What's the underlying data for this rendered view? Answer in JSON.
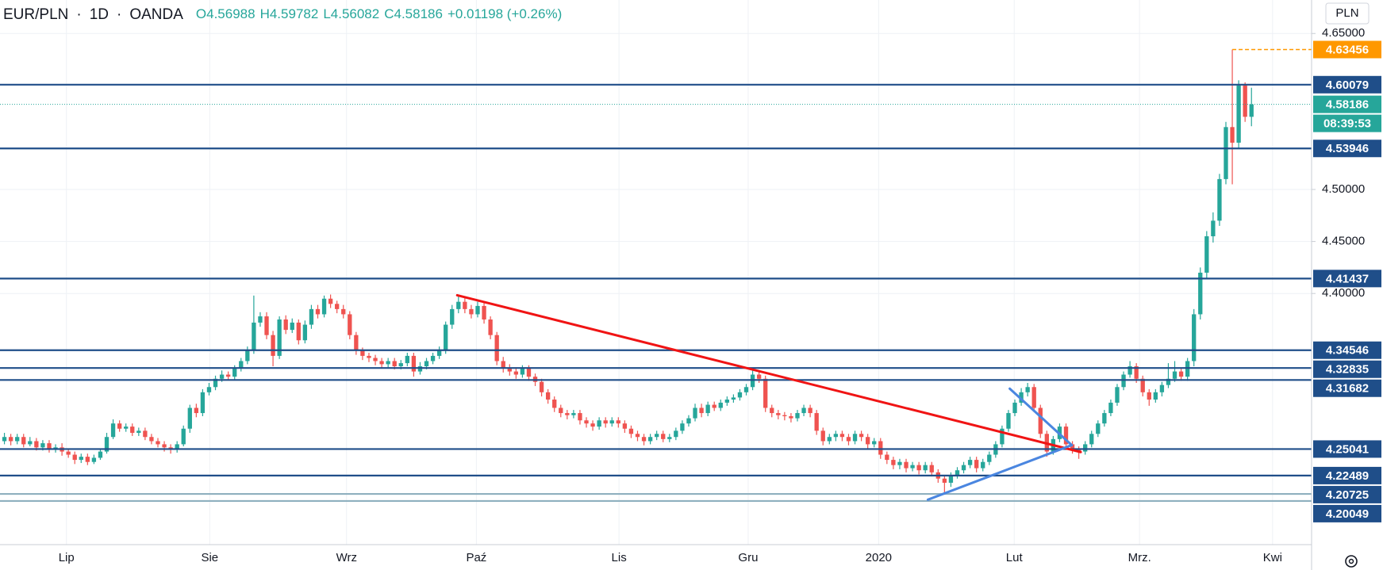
{
  "chart_data": {
    "type": "candlestick",
    "symbol": "EUR/PLN",
    "interval": "1D",
    "source": "OANDA",
    "ohlc_labels": [
      "O4.56988",
      "H4.59782",
      "L4.56082",
      "C4.58186"
    ],
    "change_label": "+0.01198 (+0.26%)",
    "currency": "PLN",
    "colors": {
      "up": "#26a69a",
      "down": "#ef5350",
      "level": "#1f4e89",
      "level_light": "#8fb0bf",
      "high_marker": "#ff9800",
      "grid": "#eef1f5"
    },
    "first_open": 4.258,
    "close": [
      4.262,
      4.258,
      4.262,
      4.255,
      4.258,
      4.252,
      4.256,
      4.25,
      4.252,
      4.248,
      4.245,
      4.24,
      4.243,
      4.238,
      4.242,
      4.248,
      4.262,
      4.275,
      4.27,
      4.272,
      4.266,
      4.268,
      4.262,
      4.258,
      4.255,
      4.252,
      4.25,
      4.255,
      4.27,
      4.29,
      4.285,
      4.305,
      4.31,
      4.318,
      4.322,
      4.32,
      4.328,
      4.335,
      4.345,
      4.372,
      4.378,
      4.36,
      4.34,
      4.375,
      4.365,
      4.372,
      4.355,
      4.37,
      4.385,
      4.38,
      4.395,
      4.39,
      4.385,
      4.38,
      4.36,
      4.345,
      4.34,
      4.338,
      4.335,
      4.332,
      4.335,
      4.33,
      4.333,
      4.34,
      4.325,
      4.33,
      4.335,
      4.34,
      4.345,
      4.37,
      4.385,
      4.392,
      4.385,
      4.38,
      4.388,
      4.375,
      4.36,
      4.335,
      4.328,
      4.325,
      4.322,
      4.328,
      4.32,
      4.315,
      4.305,
      4.298,
      4.29,
      4.285,
      4.283,
      4.285,
      4.278,
      4.275,
      4.272,
      4.278,
      4.275,
      4.278,
      4.275,
      4.27,
      4.265,
      4.262,
      4.258,
      4.262,
      4.265,
      4.26,
      4.262,
      4.268,
      4.275,
      4.28,
      4.29,
      4.285,
      4.293,
      4.29,
      4.295,
      4.298,
      4.3,
      4.305,
      4.31,
      4.322,
      4.318,
      4.29,
      4.285,
      4.283,
      4.282,
      4.28,
      4.285,
      4.29,
      4.285,
      4.268,
      4.258,
      4.262,
      4.265,
      4.262,
      4.258,
      4.265,
      4.262,
      4.255,
      4.258,
      4.245,
      4.24,
      4.235,
      4.238,
      4.232,
      4.235,
      4.23,
      4.235,
      4.228,
      4.222,
      4.218,
      4.225,
      4.23,
      4.235,
      4.24,
      4.232,
      4.238,
      4.245,
      4.255,
      4.27,
      4.285,
      4.295,
      4.305,
      4.31,
      4.29,
      4.265,
      4.248,
      4.26,
      4.272,
      4.255,
      4.25,
      4.248,
      4.255,
      4.265,
      4.275,
      4.285,
      4.295,
      4.31,
      4.322,
      4.33,
      4.318,
      4.305,
      4.298,
      4.305,
      4.312,
      4.318,
      4.325,
      4.32,
      4.335,
      4.38,
      4.42,
      4.455,
      4.47,
      4.51,
      4.56,
      4.545,
      4.6,
      4.56988,
      4.58186
    ],
    "high": [
      4.266,
      4.265,
      4.265,
      4.265,
      4.262,
      4.261,
      4.259,
      4.259,
      4.255,
      4.256,
      4.251,
      4.248,
      4.246,
      4.246,
      4.245,
      4.251,
      4.266,
      4.279,
      4.278,
      4.275,
      4.275,
      4.271,
      4.271,
      4.265,
      4.261,
      4.258,
      4.255,
      4.258,
      4.273,
      4.293,
      4.294,
      4.308,
      4.314,
      4.321,
      4.326,
      4.325,
      4.331,
      4.338,
      4.349,
      4.398,
      4.382,
      4.382,
      4.364,
      4.378,
      4.379,
      4.376,
      4.375,
      4.374,
      4.389,
      4.389,
      4.398,
      4.399,
      4.393,
      4.389,
      4.383,
      4.363,
      4.348,
      4.343,
      4.341,
      4.338,
      4.338,
      4.338,
      4.336,
      4.343,
      4.343,
      4.334,
      4.338,
      4.343,
      4.349,
      4.373,
      4.389,
      4.397,
      4.396,
      4.389,
      4.392,
      4.391,
      4.378,
      4.363,
      4.339,
      4.332,
      4.329,
      4.331,
      4.331,
      4.323,
      4.318,
      4.308,
      4.301,
      4.293,
      4.288,
      4.288,
      4.288,
      4.281,
      4.278,
      4.281,
      4.281,
      4.281,
      4.281,
      4.278,
      4.273,
      4.268,
      4.265,
      4.265,
      4.268,
      4.268,
      4.265,
      4.271,
      4.278,
      4.283,
      4.294,
      4.294,
      4.296,
      4.296,
      4.298,
      4.301,
      4.303,
      4.308,
      4.313,
      4.326,
      4.326,
      4.321,
      4.293,
      4.288,
      4.286,
      4.285,
      4.288,
      4.293,
      4.293,
      4.288,
      4.271,
      4.265,
      4.268,
      4.268,
      4.265,
      4.268,
      4.268,
      4.265,
      4.261,
      4.261,
      4.248,
      4.243,
      4.241,
      4.241,
      4.238,
      4.238,
      4.238,
      4.238,
      4.231,
      4.225,
      4.228,
      4.233,
      4.238,
      4.243,
      4.243,
      4.241,
      4.248,
      4.258,
      4.273,
      4.288,
      4.298,
      4.309,
      4.314,
      4.313,
      4.293,
      4.268,
      4.263,
      4.275,
      4.275,
      4.258,
      4.253,
      4.258,
      4.268,
      4.278,
      4.288,
      4.298,
      4.313,
      4.325,
      4.335,
      4.333,
      4.321,
      4.308,
      4.308,
      4.315,
      4.333,
      4.335,
      4.328,
      4.338,
      4.385,
      4.425,
      4.46,
      4.478,
      4.515,
      4.565,
      4.63456,
      4.605,
      4.603,
      4.59782
    ],
    "low": [
      4.255,
      4.254,
      4.255,
      4.252,
      4.253,
      4.249,
      4.249,
      4.247,
      4.247,
      4.244,
      4.242,
      4.236,
      4.237,
      4.235,
      4.236,
      4.24,
      4.246,
      4.26,
      4.267,
      4.267,
      4.263,
      4.263,
      4.259,
      4.255,
      4.252,
      4.248,
      4.246,
      4.247,
      4.253,
      4.266,
      4.281,
      4.282,
      4.302,
      4.307,
      4.315,
      4.317,
      4.317,
      4.325,
      4.332,
      4.342,
      4.368,
      4.356,
      4.33,
      4.337,
      4.361,
      4.362,
      4.351,
      4.352,
      4.366,
      4.376,
      4.377,
      4.386,
      4.381,
      4.376,
      4.356,
      4.341,
      4.336,
      4.334,
      4.331,
      4.328,
      4.329,
      4.327,
      4.327,
      4.33,
      4.32,
      4.322,
      4.327,
      4.332,
      4.337,
      4.342,
      4.366,
      4.381,
      4.381,
      4.376,
      4.377,
      4.371,
      4.356,
      4.331,
      4.324,
      4.321,
      4.318,
      4.319,
      4.316,
      4.311,
      4.301,
      4.294,
      4.286,
      4.281,
      4.279,
      4.28,
      4.274,
      4.271,
      4.268,
      4.269,
      4.271,
      4.272,
      4.271,
      4.266,
      4.261,
      4.258,
      4.254,
      4.255,
      4.259,
      4.257,
      4.257,
      4.259,
      4.265,
      4.272,
      4.277,
      4.281,
      4.282,
      4.287,
      4.287,
      4.292,
      4.295,
      4.297,
      4.302,
      4.307,
      4.314,
      4.286,
      4.281,
      4.279,
      4.278,
      4.276,
      4.277,
      4.282,
      4.281,
      4.264,
      4.254,
      4.255,
      4.258,
      4.258,
      4.254,
      4.255,
      4.258,
      4.251,
      4.252,
      4.241,
      4.236,
      4.231,
      4.231,
      4.228,
      4.229,
      4.226,
      4.227,
      4.224,
      4.218,
      4.208,
      4.214,
      4.222,
      4.227,
      4.232,
      4.228,
      4.229,
      4.235,
      4.242,
      4.252,
      4.267,
      4.282,
      4.292,
      4.301,
      4.286,
      4.261,
      4.243,
      4.245,
      4.257,
      4.251,
      4.246,
      4.241,
      4.245,
      4.252,
      4.262,
      4.272,
      4.282,
      4.292,
      4.307,
      4.319,
      4.314,
      4.301,
      4.292,
      4.295,
      4.301,
      4.309,
      4.315,
      4.316,
      4.316,
      4.33,
      4.375,
      4.415,
      4.449,
      4.465,
      4.505,
      4.505,
      4.54,
      4.565,
      4.56082
    ],
    "xlim": [
      -0.69,
      204.4
    ],
    "ylim": [
      4.1585,
      4.6822
    ],
    "xticks": [
      {
        "value": 9.7,
        "label": "Lip"
      },
      {
        "value": 32.1,
        "label": "Sie"
      },
      {
        "value": 53.5,
        "label": "Wrz"
      },
      {
        "value": 73.8,
        "label": "Paź"
      },
      {
        "value": 96.1,
        "label": "Lis"
      },
      {
        "value": 116.3,
        "label": "Gru"
      },
      {
        "value": 136.7,
        "label": "2020"
      },
      {
        "value": 157.9,
        "label": "Lut"
      },
      {
        "value": 177.5,
        "label": "Mrz."
      },
      {
        "value": 198.3,
        "label": "Kwi"
      }
    ],
    "yticks": [
      {
        "value": 4.65,
        "label": "4.65000"
      },
      {
        "value": 4.5,
        "label": "4.50000"
      },
      {
        "value": 4.45,
        "label": "4.45000"
      },
      {
        "value": 4.4,
        "label": "4.40000"
      }
    ],
    "levels": [
      4.60079,
      4.53946,
      4.41437,
      4.34546,
      4.32835,
      4.31682,
      4.25041,
      4.22489,
      4.20725,
      4.20049
    ],
    "light_levels": [
      8,
      9
    ],
    "last_price": 4.58186,
    "countdown": "08:39:53",
    "high_marker": 4.63456,
    "high_marker_start": 192,
    "trendlines": [
      {
        "color": "#f01414",
        "points": [
          [
            70.8,
            4.3983
          ],
          [
            168.3,
            4.2475
          ]
        ]
      },
      {
        "color": "#4a86e0",
        "points": [
          [
            157.2,
            4.3085
          ],
          [
            166.9,
            4.2542
          ]
        ]
      },
      {
        "color": "#4a86e0",
        "points": [
          [
            144.4,
            4.2017
          ],
          [
            166.9,
            4.2542
          ]
        ]
      }
    ]
  }
}
